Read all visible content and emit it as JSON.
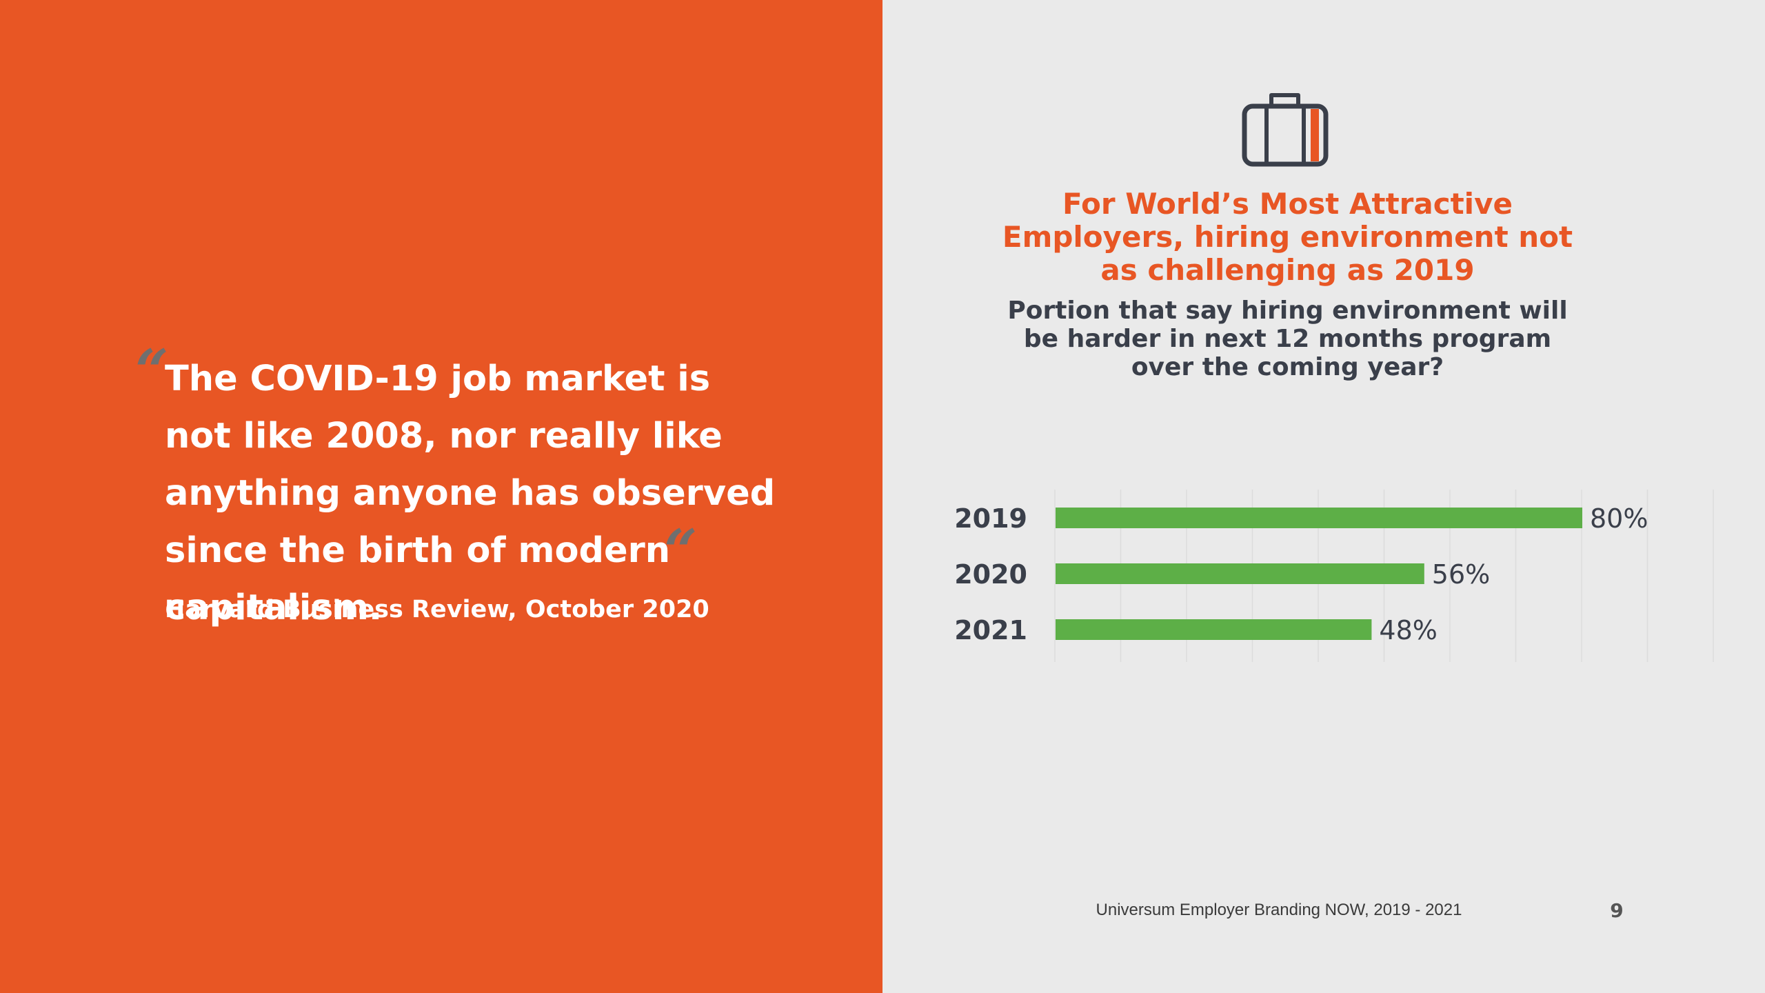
{
  "colors": {
    "accent": "#E85624",
    "panel_bg": "#EAEAEA",
    "bar": "#5DAF47",
    "dark_text": "#3A3F4A",
    "quote_mark": "#6F6F6F"
  },
  "quote": {
    "open_mark": "“",
    "close_mark": "“",
    "text": "The COVID-19 job market is not like 2008, nor really like anything anyone has observed since the birth of modern capitalism.",
    "source": "Harvard Business Review, October 2020"
  },
  "icon": {
    "name": "briefcase-icon"
  },
  "chart_data": {
    "type": "bar",
    "orientation": "horizontal",
    "title": "For World’s Most Attractive Employers, hiring environment not as challenging as 2019",
    "subtitle": "Portion that say hiring environment will be harder in next 12 months program over the coming year?",
    "categories": [
      "2019",
      "2020",
      "2021"
    ],
    "values": [
      80,
      56,
      48
    ],
    "value_labels": [
      "80%",
      "56%",
      "48%"
    ],
    "xlim": [
      0,
      100
    ],
    "grid": true,
    "legend": "none"
  },
  "footer": {
    "text": "Universum Employer Branding NOW, 2019 - 2021",
    "page_number": "9"
  }
}
